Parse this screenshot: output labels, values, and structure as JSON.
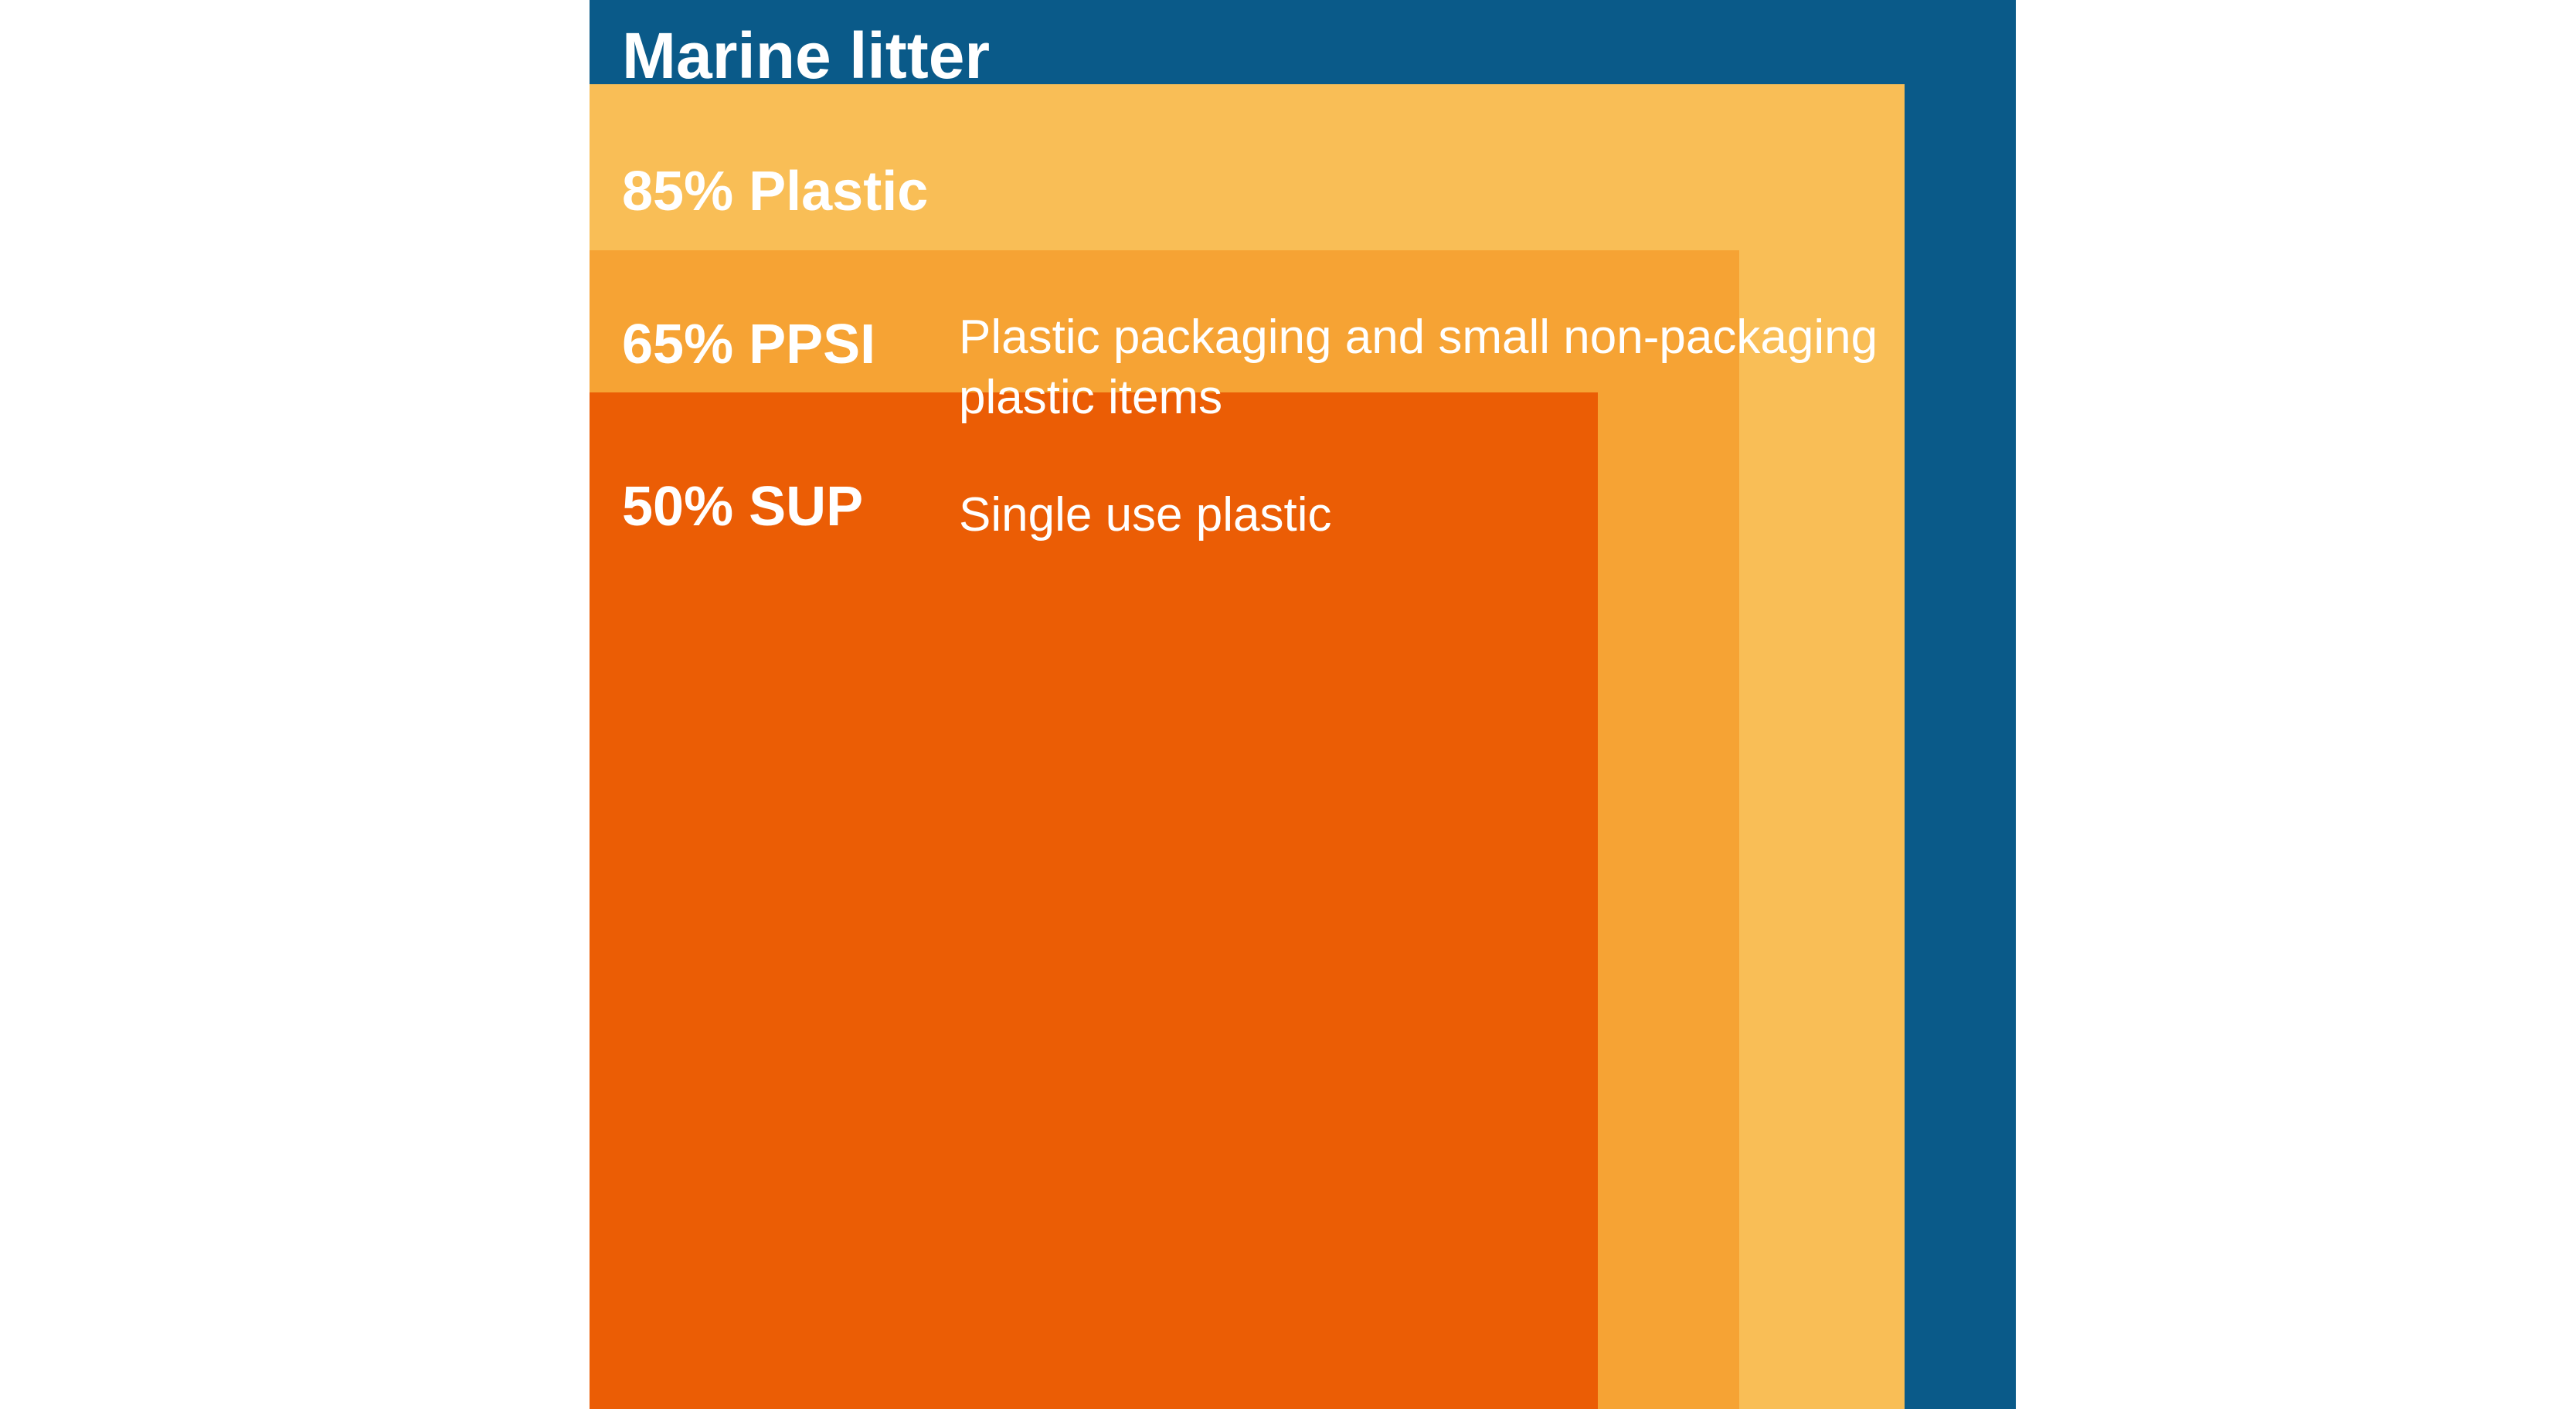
{
  "chart_data": {
    "type": "nested-area",
    "title": "Marine litter",
    "levels": [
      {
        "id": "plastic",
        "percent": 85,
        "label": "85% Plastic",
        "description": "",
        "color": "#F9BE56"
      },
      {
        "id": "ppsi",
        "percent": 65,
        "label": "65% PPSI",
        "description": "Plastic packaging and small non-packaging plastic items",
        "color": "#F6A334"
      },
      {
        "id": "sup",
        "percent": 50,
        "label": "50% SUP",
        "description": "Single use plastic",
        "color": "#EB5D05"
      }
    ]
  },
  "colors": {
    "marine": "#0A5A89"
  }
}
